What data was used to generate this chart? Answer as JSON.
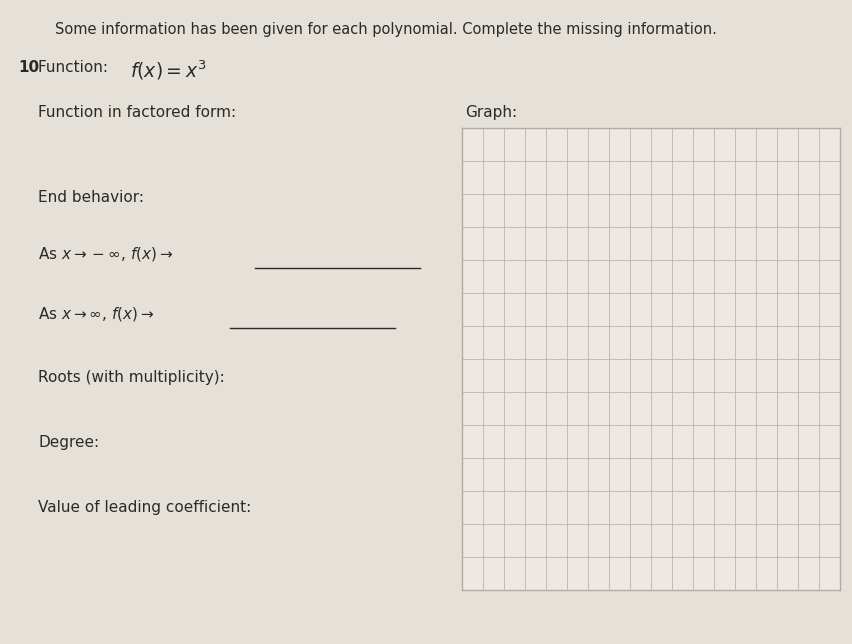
{
  "bg_color": "#e5e0d8",
  "text_color": "#2a2a2a",
  "title_text": "Some information has been given for each polynomial. Complete the missing information.",
  "title_fontsize": 10.5,
  "number_text": "10",
  "function_line": "Function: ",
  "function_math": "f(x) = x^3",
  "factored_label": "Function in factored form:",
  "graph_label": "Graph:",
  "end_behavior_label": "End behavior:",
  "end_neg_text": "As x → −∞, f(x) →",
  "end_pos_text": "As x → ∞, f(x) →",
  "roots_label": "Roots (with multiplicity):",
  "degree_label": "Degree:",
  "leading_label": "Value of leading coefficient:",
  "grid_color": "#b0aca4",
  "grid_fill": "#ede9e2",
  "grid_rows": 14,
  "grid_cols": 18,
  "label_fs": 11.0,
  "small_fs": 10.0
}
